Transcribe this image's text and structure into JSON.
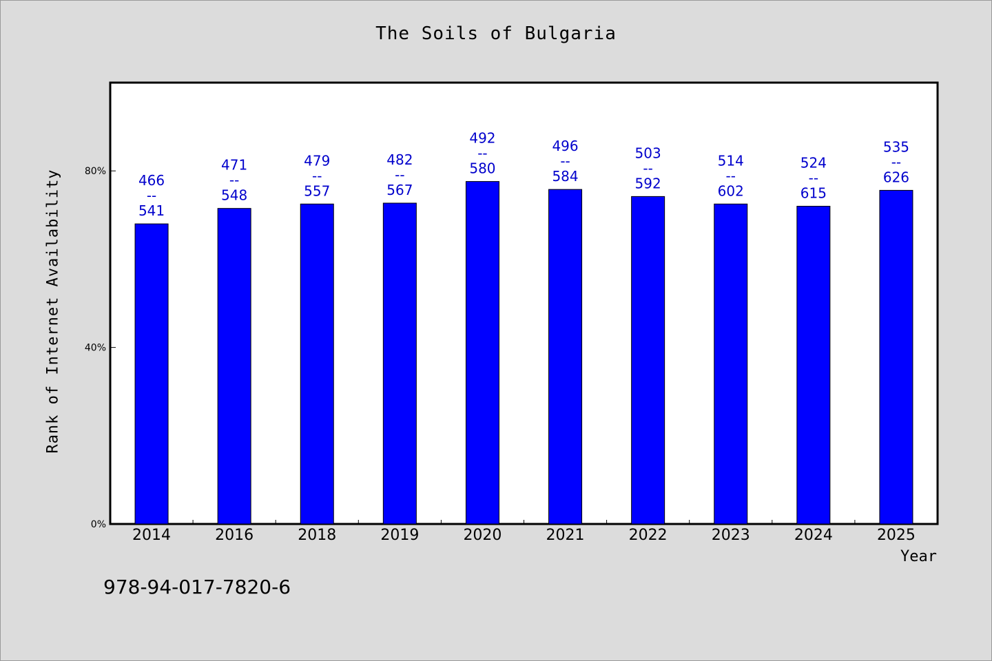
{
  "chart_data": {
    "type": "bar",
    "title": "The Soils of Bulgaria",
    "xlabel": "Year",
    "ylabel": "Rank of Internet Availability",
    "categories": [
      "2014",
      "2016",
      "2018",
      "2019",
      "2020",
      "2021",
      "2022",
      "2023",
      "2024",
      "2025"
    ],
    "values": [
      68,
      71.5,
      72.5,
      72.7,
      77.6,
      75.8,
      74.2,
      72.5,
      72,
      75.6
    ],
    "data_labels": [
      [
        "466",
        "--",
        "541"
      ],
      [
        "471",
        "--",
        "548"
      ],
      [
        "479",
        "--",
        "557"
      ],
      [
        "482",
        "--",
        "567"
      ],
      [
        "492",
        "--",
        "580"
      ],
      [
        "496",
        "--",
        "584"
      ],
      [
        "503",
        "--",
        "592"
      ],
      [
        "514",
        "--",
        "602"
      ],
      [
        "524",
        "--",
        "615"
      ],
      [
        "535",
        "--",
        "626"
      ]
    ],
    "ylim": [
      0,
      100
    ],
    "yticks": [
      0,
      40,
      80
    ],
    "ytick_labels": [
      "0%",
      "40%",
      "80%"
    ],
    "grid": false,
    "bar_color": "#0000ff",
    "label_color": "#0000cc"
  },
  "footer": {
    "isbn": "978-94-017-7820-6"
  },
  "colors": {
    "background": "#dcdcdc",
    "plot_background": "#ffffff"
  }
}
